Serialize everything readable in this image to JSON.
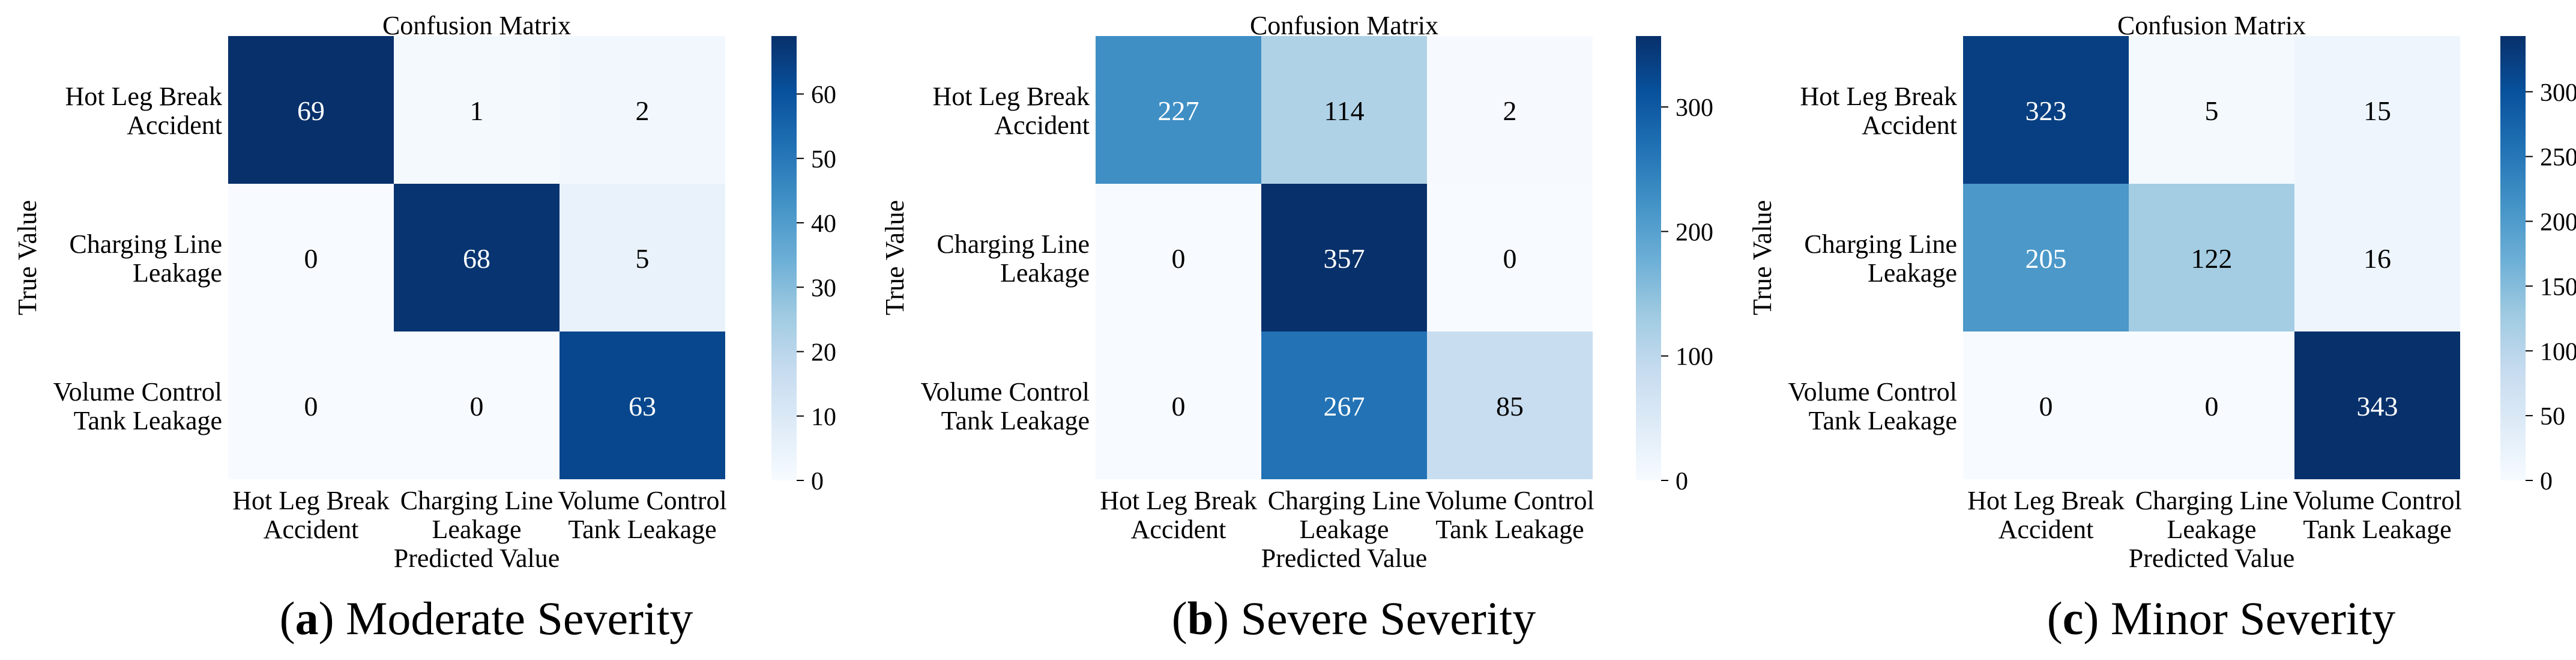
{
  "chart_data": [
    {
      "type": "heatmap",
      "title": "Confusion Matrix",
      "xlabel": "Predicted Value",
      "ylabel": "True Value",
      "x_categories": [
        [
          "Hot Leg Break",
          "Accident"
        ],
        [
          "Charging Line",
          "Leakage"
        ],
        [
          "Volume Control",
          "Tank Leakage"
        ]
      ],
      "y_categories": [
        [
          "Hot Leg Break",
          "Accident"
        ],
        [
          "Charging Line",
          "Leakage"
        ],
        [
          "Volume Control",
          "Tank Leakage"
        ]
      ],
      "values": [
        [
          69,
          1,
          2
        ],
        [
          0,
          68,
          5
        ],
        [
          0,
          0,
          63
        ]
      ],
      "colorbar": {
        "colormap": "Blues",
        "range": [
          0,
          69
        ],
        "ticks": [
          0,
          10,
          20,
          30,
          40,
          50,
          60
        ]
      },
      "caption": {
        "label": "a",
        "text": "Moderate Severity"
      }
    },
    {
      "type": "heatmap",
      "title": "Confusion Matrix",
      "xlabel": "Predicted Value",
      "ylabel": "True Value",
      "x_categories": [
        [
          "Hot Leg Break",
          "Accident"
        ],
        [
          "Charging Line",
          "Leakage"
        ],
        [
          "Volume Control",
          "Tank Leakage"
        ]
      ],
      "y_categories": [
        [
          "Hot Leg Break",
          "Accident"
        ],
        [
          "Charging Line",
          "Leakage"
        ],
        [
          "Volume Control",
          "Tank Leakage"
        ]
      ],
      "values": [
        [
          227,
          114,
          2
        ],
        [
          0,
          357,
          0
        ],
        [
          0,
          267,
          85
        ]
      ],
      "colorbar": {
        "colormap": "Blues",
        "range": [
          0,
          357
        ],
        "ticks": [
          0,
          100,
          200,
          300
        ]
      },
      "caption": {
        "label": "b",
        "text": "Severe Severity"
      }
    },
    {
      "type": "heatmap",
      "title": "Confusion Matrix",
      "xlabel": "Predicted Value",
      "ylabel": "True Value",
      "x_categories": [
        [
          "Hot Leg Break",
          "Accident"
        ],
        [
          "Charging Line",
          "Leakage"
        ],
        [
          "Volume Control",
          "Tank Leakage"
        ]
      ],
      "y_categories": [
        [
          "Hot Leg Break",
          "Accident"
        ],
        [
          "Charging Line",
          "Leakage"
        ],
        [
          "Volume Control",
          "Tank Leakage"
        ]
      ],
      "values": [
        [
          323,
          5,
          15
        ],
        [
          205,
          122,
          16
        ],
        [
          0,
          0,
          343
        ]
      ],
      "colorbar": {
        "colormap": "Blues",
        "range": [
          0,
          343
        ],
        "ticks": [
          0,
          50,
          100,
          150,
          200,
          250,
          300
        ]
      },
      "caption": {
        "label": "c",
        "text": "Minor Severity"
      }
    }
  ]
}
